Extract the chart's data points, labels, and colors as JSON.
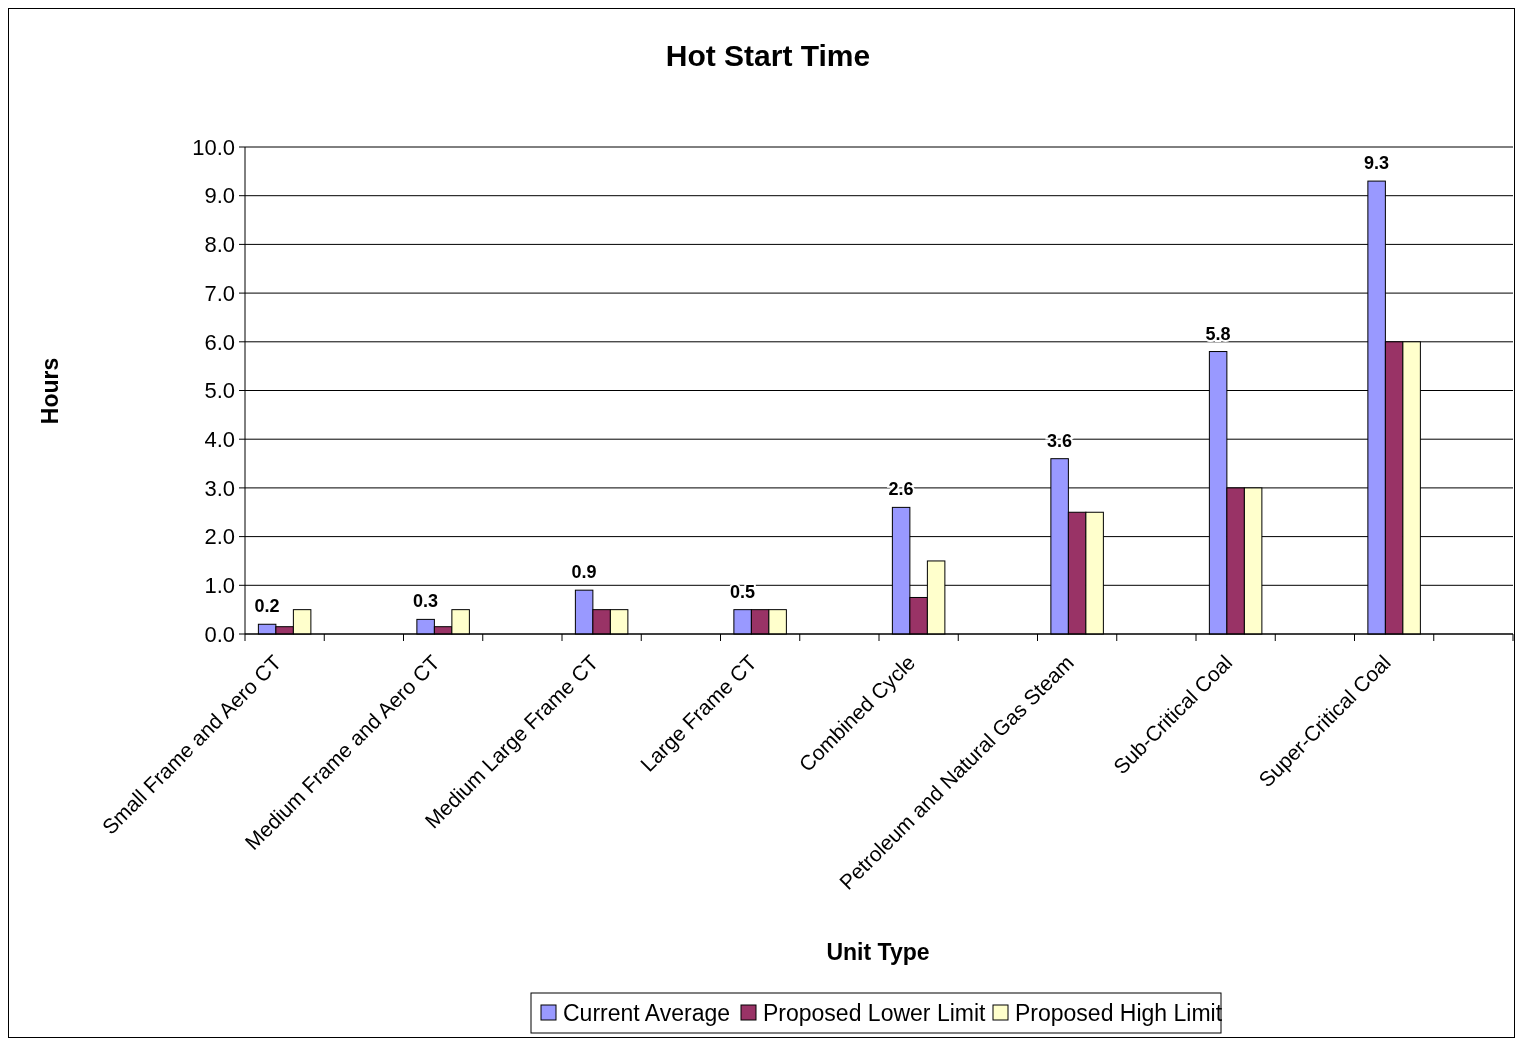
{
  "chart_data": {
    "type": "bar",
    "title": "Hot Start Time",
    "xlabel": "Unit Type",
    "ylabel": "Hours",
    "categories": [
      "Small Frame and Aero CT",
      "Medium Frame and Aero CT",
      "Medium Large Frame CT",
      "Large Frame CT",
      "Combined Cycle",
      "Petroleum and Natural Gas Steam",
      "Sub-Critical Coal",
      "Super-Critical Coal"
    ],
    "series": [
      {
        "name": "Current Average",
        "color": "#9999ff",
        "values": [
          0.2,
          0.3,
          0.9,
          0.5,
          2.6,
          3.6,
          5.8,
          9.3
        ],
        "value_labels": [
          "0.2",
          "0.3",
          "0.9",
          "0.5",
          "2.6",
          "3.6",
          "5.8",
          "9.3"
        ]
      },
      {
        "name": "Proposed Lower Limit",
        "color": "#993366",
        "values": [
          0.15,
          0.15,
          0.5,
          0.5,
          0.75,
          2.5,
          3.0,
          6.0
        ]
      },
      {
        "name": "Proposed High Limit",
        "color": "#ffffcc",
        "values": [
          0.5,
          0.5,
          0.5,
          0.5,
          1.5,
          2.5,
          3.0,
          6.0
        ]
      }
    ],
    "ylim": [
      0,
      10
    ],
    "yticks": [
      {
        "value": 0,
        "label": "0.0"
      },
      {
        "value": 1,
        "label": "1.0"
      },
      {
        "value": 2,
        "label": "2.0"
      },
      {
        "value": 3,
        "label": "3.0"
      },
      {
        "value": 4,
        "label": "4.0"
      },
      {
        "value": 5,
        "label": "5.0"
      },
      {
        "value": 6,
        "label": "6.0"
      },
      {
        "value": 7,
        "label": "7.0"
      },
      {
        "value": 8,
        "label": "8.0"
      },
      {
        "value": 9,
        "label": "9.0"
      },
      {
        "value": 10,
        "label": "10.0"
      }
    ],
    "grid": "y",
    "legend": "bottom"
  }
}
